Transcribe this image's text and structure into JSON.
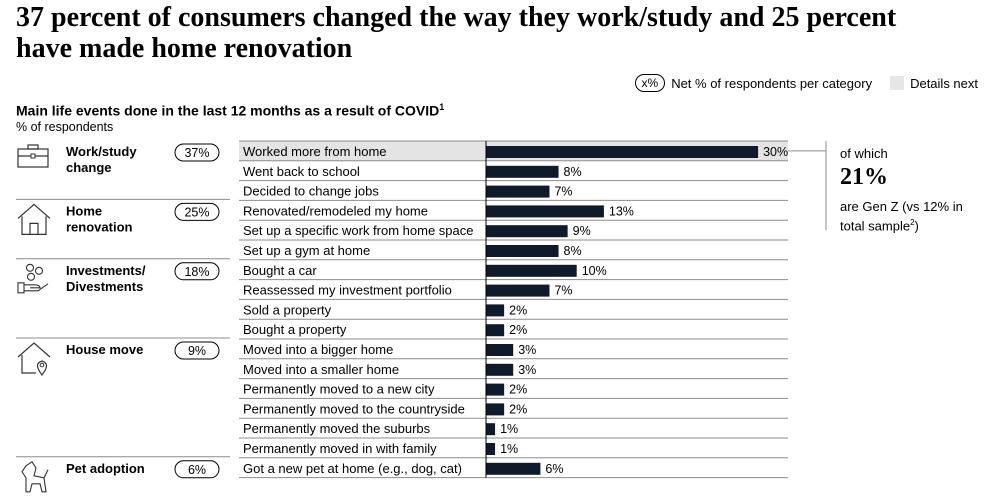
{
  "title": "37 percent of consumers changed the way they work/study and 25 percent have made home renovation",
  "legend": {
    "pill_text": "x%",
    "net_label": "Net % of respondents per category",
    "details_label": "Details next"
  },
  "subtitle": "Main life events done in the last 12 months as a result of COVID",
  "subtitle_footnote": "1",
  "unit": "% of respondents",
  "callout": {
    "line1": "of which",
    "value": "21%",
    "line3": "are Gen Z (vs 12% in total sample",
    "footnote": "2",
    "close": ")"
  },
  "colors": {
    "bar": "#0f1b2b",
    "highlight": "#e4e4e4",
    "rule": "#8c8c8c"
  },
  "chart_data": {
    "type": "bar",
    "orientation": "horizontal",
    "unit": "%",
    "groups": [
      {
        "label_lines": [
          "Work/study",
          "change"
        ],
        "net": "37%",
        "icon": "briefcase-icon",
        "items": [
          0,
          1,
          2
        ]
      },
      {
        "label_lines": [
          "Home",
          "renovation"
        ],
        "net": "25%",
        "icon": "house-icon",
        "items": [
          3,
          4,
          5
        ]
      },
      {
        "label_lines": [
          "Investments/",
          "Divestments"
        ],
        "net": "18%",
        "icon": "coins-hand-icon",
        "items": [
          6,
          7,
          8,
          9
        ]
      },
      {
        "label_lines": [
          "House move"
        ],
        "net": "9%",
        "icon": "house-location-icon",
        "items": [
          10,
          11,
          12,
          13,
          14,
          15
        ]
      },
      {
        "label_lines": [
          "Pet adoption"
        ],
        "net": "6%",
        "icon": "dog-icon",
        "items": [
          16
        ]
      }
    ],
    "categories": [
      "Worked more from home",
      "Went back to school",
      "Decided to change jobs",
      "Renovated/remodeled my home",
      "Set up a specific work from home space",
      "Set up a gym at home",
      "Bought a car",
      "Reassessed my investment portfolio",
      "Sold a property",
      "Bought a property",
      "Moved into a bigger home",
      "Moved into a smaller home",
      "Permanently moved to a new city",
      "Permanently moved to the countryside",
      "Permanently moved the suburbs",
      "Permanently moved in with family",
      "Got a new pet at home (e.g., dog, cat)"
    ],
    "values": [
      30,
      8,
      7,
      13,
      9,
      8,
      10,
      7,
      2,
      2,
      3,
      3,
      2,
      2,
      1,
      1,
      6
    ],
    "value_labels": [
      "30%",
      "8%",
      "7%",
      "13%",
      "9%",
      "8%",
      "10%",
      "7%",
      "2%",
      "2%",
      "3%",
      "3%",
      "2%",
      "2%",
      "1%",
      "1%",
      "6%"
    ],
    "highlighted": 0
  }
}
